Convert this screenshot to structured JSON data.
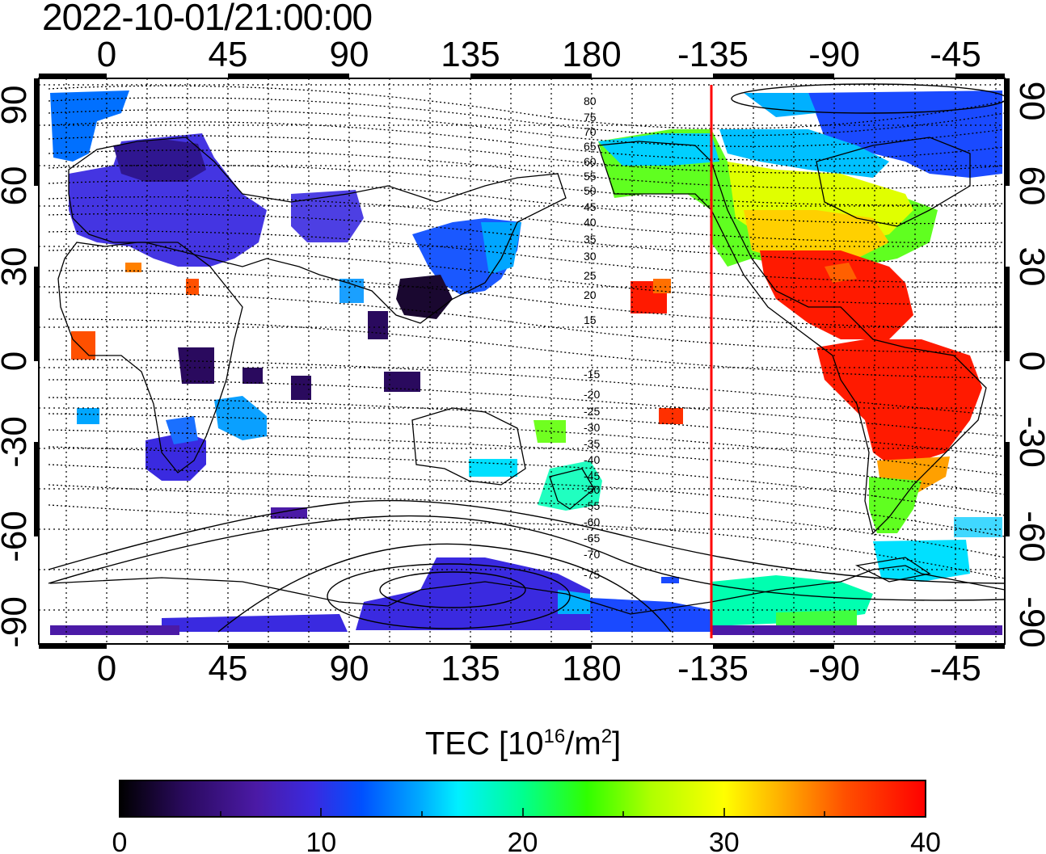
{
  "title": "2022-10-01/21:00:00",
  "map": {
    "x_ticks_top": [
      "0",
      "45",
      "90",
      "135",
      "180",
      "-135",
      "-90",
      "-45"
    ],
    "x_ticks_bottom": [
      "0",
      "45",
      "90",
      "135",
      "180",
      "-135",
      "-90",
      "-45"
    ],
    "y_ticks_left": [
      "90",
      "60",
      "30",
      "0",
      "-30",
      "-60",
      "-90"
    ],
    "y_ticks_right": [
      "90",
      "60",
      "30",
      "0",
      "-30",
      "-60",
      "-90"
    ],
    "terminator_longitude": -135,
    "terminator_color": "#ff0000",
    "magnetic_latitude_labels_north": [
      "80",
      "75",
      "70",
      "65",
      "60",
      "55",
      "50",
      "45",
      "40",
      "35",
      "30",
      "25",
      "20",
      "15"
    ],
    "magnetic_latitude_labels_south": [
      "-15",
      "-20",
      "-25",
      "-30",
      "-35",
      "-40",
      "-45",
      "-50",
      "-55",
      "-60",
      "-65",
      "-70",
      "-75"
    ]
  },
  "colorbar": {
    "title_main": "TEC  [10",
    "title_exp": "16",
    "title_unit": "/m",
    "title_exp2": "2",
    "title_close": "]",
    "ticks": [
      "0",
      "10",
      "20",
      "30",
      "40"
    ],
    "range": [
      0,
      40
    ],
    "colors": [
      "#000000",
      "#2a0a5e",
      "#4b1aa6",
      "#3a2ae0",
      "#0050ff",
      "#00a6ff",
      "#00f0ff",
      "#00ff90",
      "#30ff00",
      "#b0ff00",
      "#ffff00",
      "#ffb000",
      "#ff5000",
      "#ff0000"
    ]
  }
}
